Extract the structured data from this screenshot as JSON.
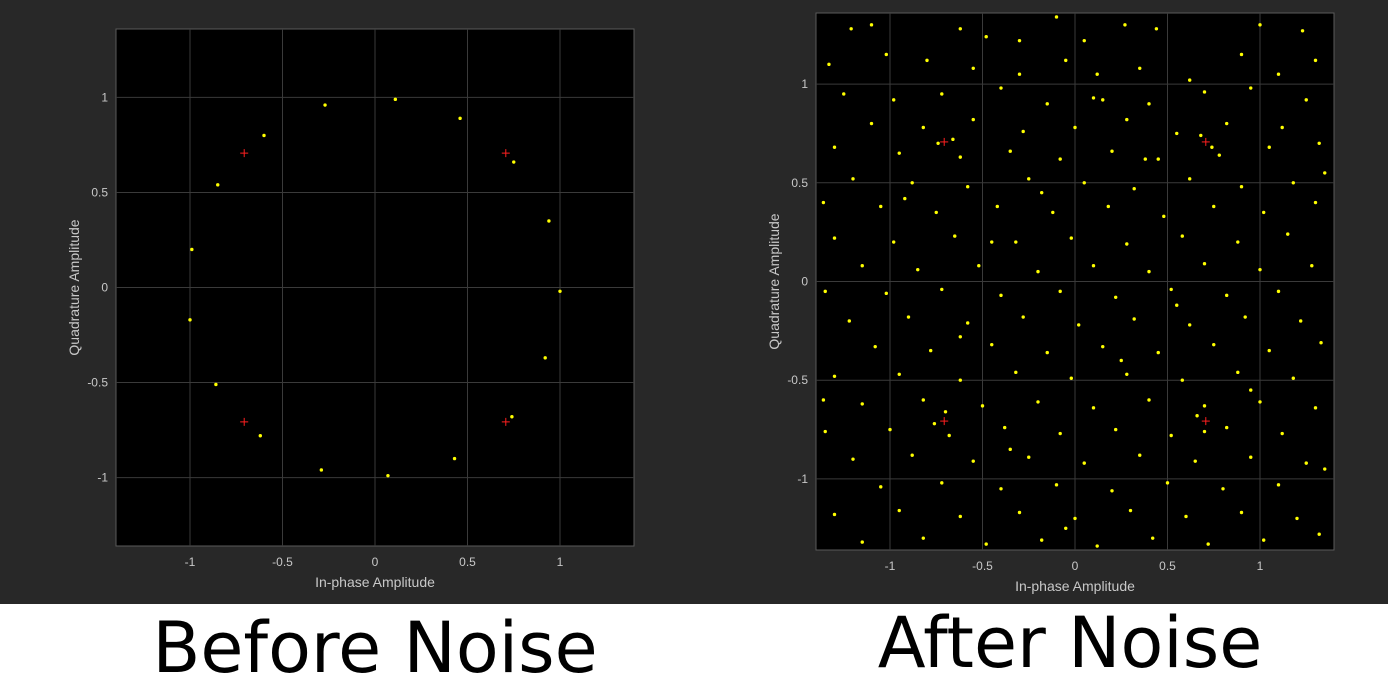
{
  "chart_data": [
    {
      "type": "scatter",
      "title": "",
      "xlabel": "In-phase Amplitude",
      "ylabel": "Quadrature Amplitude",
      "xlim": [
        -1.4,
        1.4
      ],
      "ylim": [
        -1.36,
        1.36
      ],
      "xticks": [
        -1,
        -0.5,
        0,
        0.5,
        1
      ],
      "yticks": [
        -1,
        -0.5,
        0,
        0.5,
        1
      ],
      "xtick_labels": [
        "-1",
        "-0.5",
        "0",
        "0.5",
        "1"
      ],
      "ytick_labels": [
        "-1",
        "-0.5",
        "0",
        "0.5",
        "1"
      ],
      "grid": true,
      "background": "#000000",
      "point_color": "#ffff00",
      "reference_color": "#ff2020",
      "reference_points": [
        [
          -0.707,
          0.707
        ],
        [
          0.707,
          0.707
        ],
        [
          -0.707,
          -0.707
        ],
        [
          0.707,
          -0.707
        ]
      ],
      "points": [
        [
          -0.27,
          0.96
        ],
        [
          0.11,
          0.99
        ],
        [
          0.46,
          0.89
        ],
        [
          -0.6,
          0.8
        ],
        [
          0.75,
          0.66
        ],
        [
          -0.85,
          0.54
        ],
        [
          0.94,
          0.35
        ],
        [
          -0.99,
          0.2
        ],
        [
          1.0,
          -0.02
        ],
        [
          -1.0,
          -0.17
        ],
        [
          0.92,
          -0.37
        ],
        [
          -0.86,
          -0.51
        ],
        [
          0.74,
          -0.68
        ],
        [
          -0.62,
          -0.78
        ],
        [
          0.43,
          -0.9
        ],
        [
          -0.29,
          -0.96
        ],
        [
          0.07,
          -0.99
        ]
      ]
    },
    {
      "type": "scatter",
      "title": "",
      "xlabel": "In-phase Amplitude",
      "ylabel": "Quadrature Amplitude",
      "xlim": [
        -1.4,
        1.4
      ],
      "ylim": [
        -1.36,
        1.36
      ],
      "xticks": [
        -1,
        -0.5,
        0,
        0.5,
        1
      ],
      "yticks": [
        -1,
        -0.5,
        0,
        0.5,
        1
      ],
      "xtick_labels": [
        "-1",
        "-0.5",
        "0",
        "0.5",
        "1"
      ],
      "ytick_labels": [
        "-1",
        "-0.5",
        "0",
        "0.5",
        "1"
      ],
      "grid": true,
      "background": "#000000",
      "point_color": "#ffff00",
      "reference_color": "#ff2020",
      "reference_points": [
        [
          -0.707,
          0.707
        ],
        [
          0.707,
          0.707
        ],
        [
          -0.707,
          -0.707
        ],
        [
          0.707,
          -0.707
        ]
      ],
      "points": [
        [
          -1.21,
          1.28
        ],
        [
          -1.1,
          1.3
        ],
        [
          -0.62,
          1.28
        ],
        [
          -0.48,
          1.24
        ],
        [
          -0.3,
          1.22
        ],
        [
          -0.1,
          1.34
        ],
        [
          0.27,
          1.3
        ],
        [
          0.44,
          1.28
        ],
        [
          1.0,
          1.3
        ],
        [
          1.23,
          1.27
        ],
        [
          -1.33,
          1.1
        ],
        [
          -1.02,
          1.15
        ],
        [
          -0.8,
          1.12
        ],
        [
          -0.55,
          1.08
        ],
        [
          -0.3,
          1.05
        ],
        [
          -0.05,
          1.12
        ],
        [
          0.12,
          1.05
        ],
        [
          0.35,
          1.08
        ],
        [
          0.62,
          1.02
        ],
        [
          0.9,
          1.15
        ],
        [
          1.1,
          1.05
        ],
        [
          1.3,
          1.12
        ],
        [
          -1.25,
          0.95
        ],
        [
          -0.98,
          0.92
        ],
        [
          -0.72,
          0.95
        ],
        [
          -0.4,
          0.98
        ],
        [
          -0.15,
          0.9
        ],
        [
          0.1,
          0.93
        ],
        [
          0.4,
          0.9
        ],
        [
          0.7,
          0.96
        ],
        [
          0.95,
          0.98
        ],
        [
          1.25,
          0.92
        ],
        [
          -1.1,
          0.8
        ],
        [
          -0.82,
          0.78
        ],
        [
          -0.55,
          0.82
        ],
        [
          -0.28,
          0.76
        ],
        [
          0.0,
          0.78
        ],
        [
          0.28,
          0.82
        ],
        [
          0.55,
          0.75
        ],
        [
          0.82,
          0.8
        ],
        [
          1.12,
          0.78
        ],
        [
          -1.3,
          0.68
        ],
        [
          -0.95,
          0.65
        ],
        [
          -0.62,
          0.63
        ],
        [
          -0.35,
          0.66
        ],
        [
          -0.08,
          0.62
        ],
        [
          0.2,
          0.66
        ],
        [
          0.45,
          0.62
        ],
        [
          0.78,
          0.64
        ],
        [
          1.05,
          0.68
        ],
        [
          1.32,
          0.7
        ],
        [
          -1.2,
          0.52
        ],
        [
          -0.88,
          0.5
        ],
        [
          -0.58,
          0.48
        ],
        [
          -0.25,
          0.52
        ],
        [
          0.05,
          0.5
        ],
        [
          0.32,
          0.47
        ],
        [
          0.62,
          0.52
        ],
        [
          0.9,
          0.48
        ],
        [
          1.18,
          0.5
        ],
        [
          -1.05,
          0.38
        ],
        [
          -0.75,
          0.35
        ],
        [
          -0.42,
          0.38
        ],
        [
          -0.12,
          0.35
        ],
        [
          0.18,
          0.38
        ],
        [
          0.48,
          0.33
        ],
        [
          0.75,
          0.38
        ],
        [
          1.02,
          0.35
        ],
        [
          1.3,
          0.4
        ],
        [
          -1.3,
          0.22
        ],
        [
          -0.98,
          0.2
        ],
        [
          -0.65,
          0.23
        ],
        [
          -0.32,
          0.2
        ],
        [
          -0.02,
          0.22
        ],
        [
          0.28,
          0.19
        ],
        [
          0.58,
          0.23
        ],
        [
          0.88,
          0.2
        ],
        [
          1.15,
          0.24
        ],
        [
          -1.15,
          0.08
        ],
        [
          -0.85,
          0.06
        ],
        [
          -0.52,
          0.08
        ],
        [
          -0.2,
          0.05
        ],
        [
          0.1,
          0.08
        ],
        [
          0.4,
          0.05
        ],
        [
          0.7,
          0.09
        ],
        [
          1.0,
          0.06
        ],
        [
          1.28,
          0.08
        ],
        [
          -1.35,
          -0.05
        ],
        [
          -1.02,
          -0.06
        ],
        [
          -0.72,
          -0.04
        ],
        [
          -0.4,
          -0.07
        ],
        [
          -0.08,
          -0.05
        ],
        [
          0.22,
          -0.08
        ],
        [
          0.52,
          -0.04
        ],
        [
          0.82,
          -0.07
        ],
        [
          1.1,
          -0.05
        ],
        [
          -1.22,
          -0.2
        ],
        [
          -0.9,
          -0.18
        ],
        [
          -0.58,
          -0.21
        ],
        [
          -0.28,
          -0.18
        ],
        [
          0.02,
          -0.22
        ],
        [
          0.32,
          -0.19
        ],
        [
          0.62,
          -0.22
        ],
        [
          0.92,
          -0.18
        ],
        [
          1.22,
          -0.2
        ],
        [
          -1.08,
          -0.33
        ],
        [
          -0.78,
          -0.35
        ],
        [
          -0.45,
          -0.32
        ],
        [
          -0.15,
          -0.36
        ],
        [
          0.15,
          -0.33
        ],
        [
          0.45,
          -0.36
        ],
        [
          0.75,
          -0.32
        ],
        [
          1.05,
          -0.35
        ],
        [
          1.33,
          -0.31
        ],
        [
          -1.3,
          -0.48
        ],
        [
          -0.95,
          -0.47
        ],
        [
          -0.62,
          -0.5
        ],
        [
          -0.32,
          -0.46
        ],
        [
          -0.02,
          -0.49
        ],
        [
          0.28,
          -0.47
        ],
        [
          0.58,
          -0.5
        ],
        [
          0.88,
          -0.46
        ],
        [
          1.18,
          -0.49
        ],
        [
          -1.15,
          -0.62
        ],
        [
          -0.82,
          -0.6
        ],
        [
          -0.5,
          -0.63
        ],
        [
          -0.2,
          -0.61
        ],
        [
          0.1,
          -0.64
        ],
        [
          0.4,
          -0.6
        ],
        [
          0.7,
          -0.63
        ],
        [
          1.0,
          -0.61
        ],
        [
          1.3,
          -0.64
        ],
        [
          -1.35,
          -0.76
        ],
        [
          -1.0,
          -0.75
        ],
        [
          -0.68,
          -0.78
        ],
        [
          -0.38,
          -0.74
        ],
        [
          -0.08,
          -0.77
        ],
        [
          0.22,
          -0.75
        ],
        [
          0.52,
          -0.78
        ],
        [
          0.82,
          -0.74
        ],
        [
          1.12,
          -0.77
        ],
        [
          -1.2,
          -0.9
        ],
        [
          -0.88,
          -0.88
        ],
        [
          -0.55,
          -0.91
        ],
        [
          -0.25,
          -0.89
        ],
        [
          0.05,
          -0.92
        ],
        [
          0.35,
          -0.88
        ],
        [
          0.65,
          -0.91
        ],
        [
          0.95,
          -0.89
        ],
        [
          1.25,
          -0.92
        ],
        [
          -1.05,
          -1.04
        ],
        [
          -0.72,
          -1.02
        ],
        [
          -0.4,
          -1.05
        ],
        [
          -0.1,
          -1.03
        ],
        [
          0.2,
          -1.06
        ],
        [
          0.5,
          -1.02
        ],
        [
          0.8,
          -1.05
        ],
        [
          1.1,
          -1.03
        ],
        [
          -1.3,
          -1.18
        ],
        [
          -0.95,
          -1.16
        ],
        [
          -0.62,
          -1.19
        ],
        [
          -0.3,
          -1.17
        ],
        [
          0.0,
          -1.2
        ],
        [
          0.3,
          -1.16
        ],
        [
          0.6,
          -1.19
        ],
        [
          0.9,
          -1.17
        ],
        [
          1.2,
          -1.2
        ],
        [
          -1.15,
          -1.32
        ],
        [
          -0.82,
          -1.3
        ],
        [
          -0.48,
          -1.33
        ],
        [
          -0.18,
          -1.31
        ],
        [
          0.12,
          -1.34
        ],
        [
          0.42,
          -1.3
        ],
        [
          0.72,
          -1.33
        ],
        [
          1.02,
          -1.31
        ],
        [
          1.32,
          -1.28
        ],
        [
          -0.74,
          0.7
        ],
        [
          -0.66,
          0.72
        ],
        [
          0.68,
          0.74
        ],
        [
          0.74,
          0.68
        ],
        [
          -0.7,
          -0.66
        ],
        [
          -0.76,
          -0.72
        ],
        [
          0.7,
          -0.76
        ],
        [
          0.66,
          -0.68
        ],
        [
          -0.45,
          0.2
        ],
        [
          0.38,
          0.62
        ],
        [
          -0.62,
          -0.28
        ],
        [
          0.55,
          -0.12
        ],
        [
          0.15,
          0.92
        ],
        [
          -0.92,
          0.42
        ],
        [
          0.95,
          -0.55
        ],
        [
          -0.35,
          -0.85
        ],
        [
          0.25,
          -0.4
        ],
        [
          -0.18,
          0.45
        ],
        [
          1.35,
          0.55
        ],
        [
          -1.36,
          0.4
        ],
        [
          0.05,
          1.22
        ],
        [
          -0.05,
          -1.25
        ],
        [
          1.35,
          -0.95
        ],
        [
          -1.36,
          -0.6
        ]
      ]
    }
  ],
  "captions": {
    "left": "Before Noise",
    "right": "After Noise"
  }
}
